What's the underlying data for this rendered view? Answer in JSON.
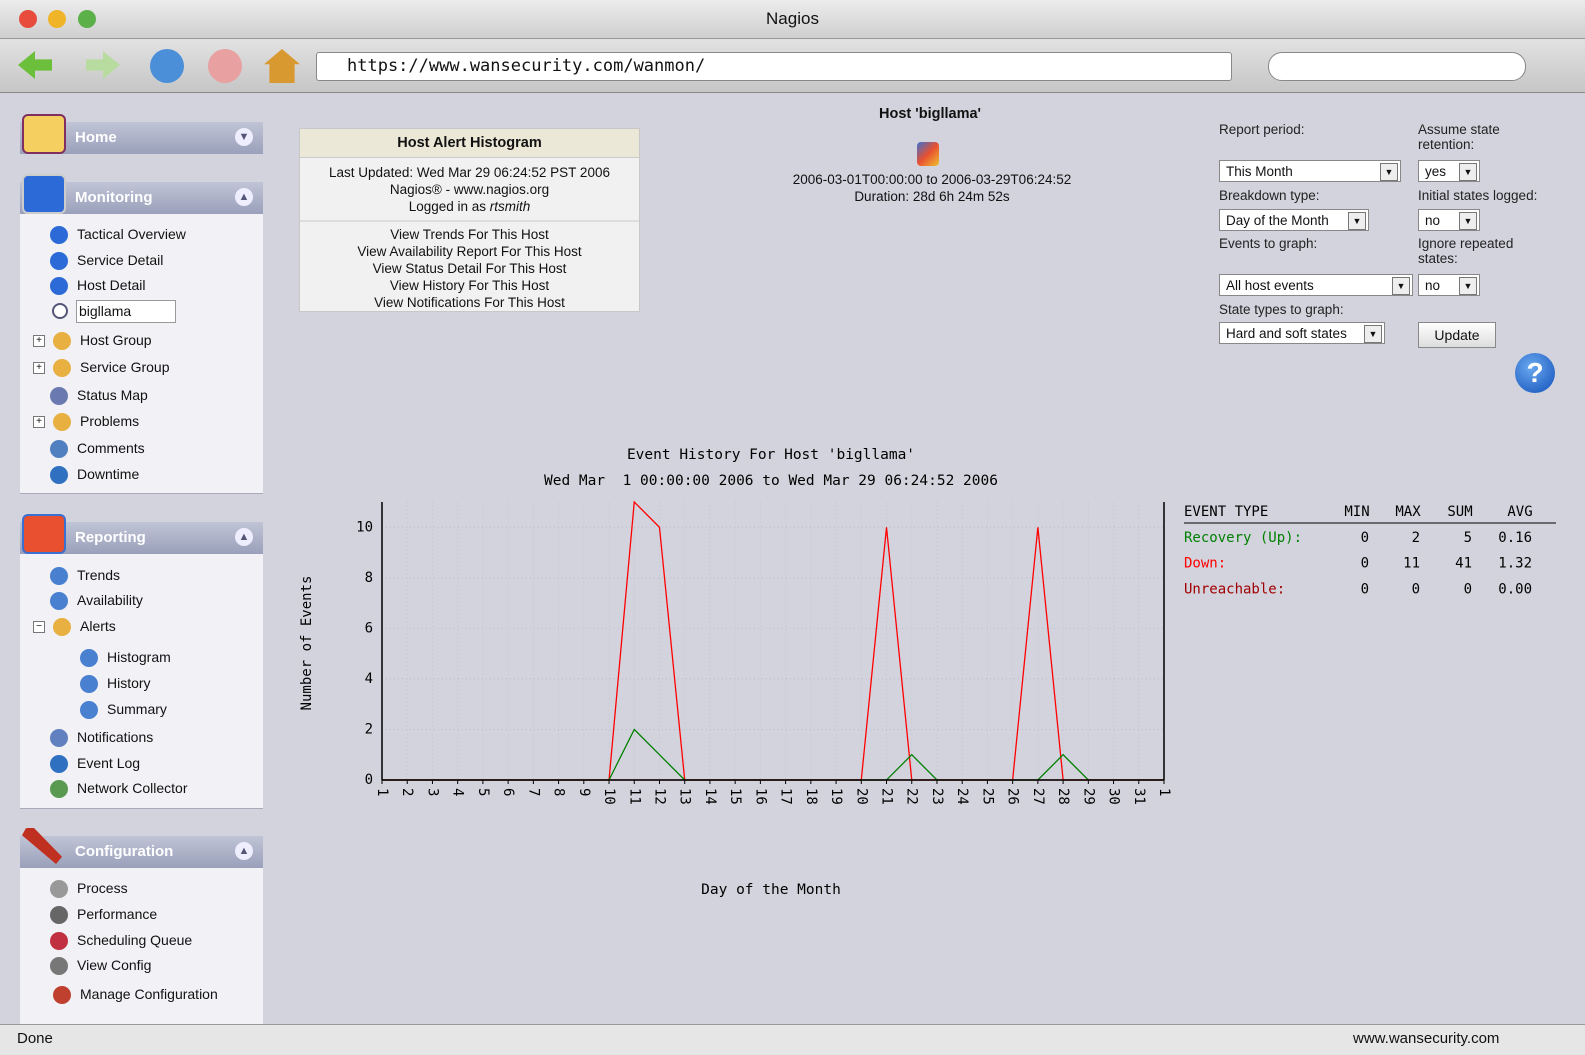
{
  "window": {
    "title": "Nagios",
    "url": "https://www.wansecurity.com/wanmon/",
    "status": "Done",
    "status_host": "www.wansecurity.com"
  },
  "sidebar": {
    "home": "Home",
    "monitoring": {
      "title": "Monitoring",
      "items": [
        "Tactical Overview",
        "Service Detail",
        "Host Detail",
        "Host Group",
        "Service Group",
        "Status Map",
        "Problems",
        "Comments",
        "Downtime"
      ],
      "search": "bigllama"
    },
    "reporting": {
      "title": "Reporting",
      "items": [
        "Trends",
        "Availability",
        "Alerts",
        "Histogram",
        "History",
        "Summary",
        "Notifications",
        "Event Log",
        "Network Collector"
      ]
    },
    "configuration": {
      "title": "Configuration",
      "items": [
        "Process",
        "Performance",
        "Scheduling Queue",
        "View Config",
        "Manage Configuration"
      ]
    }
  },
  "info_box": {
    "title": "Host Alert Histogram",
    "updated": "Last Updated: Wed Mar 29 06:24:52 PST 2006",
    "site": "Nagios® - www.nagios.org",
    "logged_in": "Logged in as",
    "user": "rtsmith",
    "links": [
      "View Trends For This Host",
      "View Availability Report For This Host",
      "View Status Detail For This Host",
      "View History For This Host",
      "View Notifications For This Host"
    ]
  },
  "host": {
    "title": "Host 'bigllama'",
    "range": "2006-03-01T00:00:00 to 2006-03-29T06:24:52",
    "duration": "Duration: 28d 6h 24m 52s"
  },
  "form": {
    "report_period": {
      "label": "Report period:",
      "value": "This Month"
    },
    "assume_state": {
      "label": "Assume state retention:",
      "value": "yes"
    },
    "breakdown": {
      "label": "Breakdown type:",
      "value": "Day of the Month"
    },
    "initial_states": {
      "label": "Initial states logged:",
      "value": "no"
    },
    "events": {
      "label": "Events to graph:",
      "value": "All host events"
    },
    "ignore_repeated": {
      "label": "Ignore repeated states:",
      "value": "no"
    },
    "state_types": {
      "label": "State types to graph:",
      "value": "Hard and soft states"
    },
    "button": "Update"
  },
  "chart_data": {
    "type": "line",
    "title": "Event History For Host 'bigllama'",
    "subtitle": "Wed Mar  1 00:00:00 2006 to Wed Mar 29 06:24:52 2006",
    "x_label": "Day of the Month",
    "y_label": "Number of Events",
    "categories": [
      "1",
      "2",
      "3",
      "4",
      "5",
      "6",
      "7",
      "8",
      "9",
      "10",
      "11",
      "12",
      "13",
      "14",
      "15",
      "16",
      "17",
      "18",
      "19",
      "20",
      "21",
      "22",
      "23",
      "24",
      "25",
      "26",
      "27",
      "28",
      "29",
      "30",
      "31",
      "1"
    ],
    "series": [
      {
        "name": "Recovery (Up):",
        "color": "#008000",
        "values": [
          0,
          0,
          0,
          0,
          0,
          0,
          0,
          0,
          0,
          0,
          2,
          1,
          0,
          0,
          0,
          0,
          0,
          0,
          0,
          0,
          0,
          1,
          0,
          0,
          0,
          0,
          0,
          1,
          0,
          0,
          0,
          0
        ]
      },
      {
        "name": "Down:",
        "color": "#ff0000",
        "values": [
          0,
          0,
          0,
          0,
          0,
          0,
          0,
          0,
          0,
          0,
          11,
          10,
          0,
          0,
          0,
          0,
          0,
          0,
          0,
          0,
          10,
          0,
          0,
          0,
          0,
          0,
          10,
          0,
          0,
          0,
          0,
          0
        ]
      },
      {
        "name": "Unreachable:",
        "color": "#a00000",
        "values": [
          0,
          0,
          0,
          0,
          0,
          0,
          0,
          0,
          0,
          0,
          0,
          0,
          0,
          0,
          0,
          0,
          0,
          0,
          0,
          0,
          0,
          0,
          0,
          0,
          0,
          0,
          0,
          0,
          0,
          0,
          0,
          0
        ]
      }
    ],
    "ylim": [
      0,
      11
    ],
    "yticks": [
      0,
      2,
      4,
      6,
      8,
      10
    ],
    "grid": true,
    "stats": {
      "headers": [
        "EVENT TYPE",
        "MIN",
        "MAX",
        "SUM",
        "AVG"
      ],
      "rows": [
        [
          "0",
          "2",
          "5",
          "0.16"
        ],
        [
          "0",
          "11",
          "41",
          "1.32"
        ],
        [
          "0",
          "0",
          "0",
          "0.00"
        ]
      ]
    }
  }
}
